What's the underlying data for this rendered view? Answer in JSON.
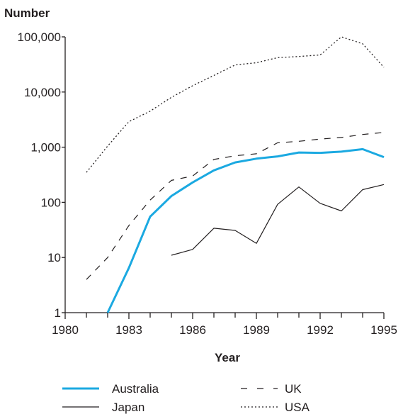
{
  "chart_data": {
    "type": "line",
    "y_scale": "log",
    "ylabel": "Number",
    "xlabel": "Year",
    "xlim": [
      1980,
      1995
    ],
    "ylim": [
      1,
      100000
    ],
    "x_ticks": [
      1980,
      1983,
      1986,
      1989,
      1992,
      1995
    ],
    "y_ticks": [
      1,
      10,
      100,
      1000,
      10000,
      100000
    ],
    "y_tick_labels": [
      "1",
      "10",
      "100",
      "1,000",
      "10,000",
      "100,000"
    ],
    "grid": false,
    "legend_position": "bottom",
    "series": [
      {
        "name": "Australia",
        "style": "solid-thick",
        "color": "#1ba9e1",
        "x": [
          1982,
          1983,
          1984,
          1985,
          1986,
          1987,
          1988,
          1989,
          1990,
          1991,
          1992,
          1993,
          1994,
          1995
        ],
        "y": [
          1,
          6.5,
          55,
          130,
          230,
          380,
          530,
          620,
          680,
          800,
          790,
          830,
          920,
          660
        ]
      },
      {
        "name": "Japan",
        "style": "solid-thin",
        "color": "#231f20",
        "x": [
          1985,
          1986,
          1987,
          1988,
          1989,
          1990,
          1991,
          1992,
          1993,
          1994,
          1995
        ],
        "y": [
          11,
          14,
          34,
          31,
          18,
          92,
          190,
          96,
          70,
          170,
          210
        ]
      },
      {
        "name": "UK",
        "style": "dashed",
        "color": "#231f20",
        "x": [
          1981,
          1982,
          1983,
          1984,
          1985,
          1986,
          1987,
          1988,
          1989,
          1990,
          1991,
          1992,
          1993,
          1994,
          1995
        ],
        "y": [
          4,
          10,
          38,
          110,
          250,
          300,
          600,
          700,
          760,
          1200,
          1280,
          1400,
          1500,
          1700,
          1850
        ]
      },
      {
        "name": "USA",
        "style": "dotted",
        "color": "#231f20",
        "x": [
          1981,
          1982,
          1983,
          1984,
          1985,
          1986,
          1987,
          1988,
          1989,
          1990,
          1991,
          1992,
          1993,
          1994,
          1995
        ],
        "y": [
          350,
          1050,
          2900,
          4500,
          8000,
          13000,
          20000,
          31000,
          34000,
          42000,
          44000,
          47000,
          100000,
          75000,
          28000
        ]
      }
    ]
  }
}
